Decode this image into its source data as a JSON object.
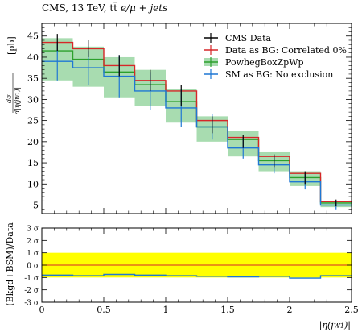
{
  "chart_data": {
    "type": "line",
    "title": "CMS, 13 TeV, t̄t e/μ + jets",
    "title_parts": {
      "pre": "CMS, 13 TeV, t",
      "tbar": "t",
      "post": " e/μ + jets"
    },
    "ylabel": "[pb]",
    "ylabel_num": "dσ",
    "ylabel_den": "d|η(j",
    "ylabel_den_tail": ")|",
    "xlabel": "|η(j",
    "xlabel_tail": ")|",
    "jet_sub": "W1",
    "ylim": [
      3,
      48
    ],
    "xlim": [
      0,
      2.5
    ],
    "x_edges": [
      0,
      0.25,
      0.5,
      0.75,
      1.0,
      1.25,
      1.5,
      1.75,
      2.0,
      2.25,
      2.5
    ],
    "x_centers": [
      0.125,
      0.375,
      0.625,
      0.875,
      1.125,
      1.375,
      1.625,
      1.875,
      2.125,
      2.375
    ],
    "y_ticks": [
      "5",
      "10",
      "15",
      "20",
      "25",
      "30",
      "35",
      "40",
      "45"
    ],
    "x_ticks": [
      "0",
      "0.5",
      "1",
      "1.5",
      "2",
      "2.5"
    ],
    "series": [
      {
        "name": "CMS Data",
        "color": "#000000",
        "values": [
          43.5,
          42,
          38,
          34.5,
          31,
          24,
          20,
          15.5,
          11.5,
          5.5
        ],
        "err": [
          2.0,
          2.0,
          2.5,
          2.5,
          2.5,
          2.0,
          1.5,
          1.5,
          1.5,
          0.8
        ]
      },
      {
        "name": "Data as BG: Correlated 0%",
        "color": "#d62728",
        "values": [
          43.5,
          42,
          38,
          34.5,
          32,
          25,
          21,
          16.5,
          12.5,
          5.8
        ]
      },
      {
        "name": "PowhegBoxZpWp",
        "color": "#2ca02c",
        "fill": "#a8dcb0",
        "values": [
          41.5,
          39.5,
          36.5,
          33.5,
          29.5,
          23.5,
          20.5,
          15.5,
          11.5,
          5.5
        ],
        "band_low": [
          34.5,
          33.0,
          30.5,
          28.5,
          24.5,
          20.0,
          16.5,
          13.0,
          9.5,
          4.5
        ],
        "band_high": [
          44.5,
          42.5,
          40.0,
          37.0,
          32.5,
          26.0,
          22.5,
          17.5,
          13.0,
          6.0
        ]
      },
      {
        "name": "SM as BG: No exclusion",
        "color": "#1f77d4",
        "values": [
          39,
          37.5,
          35.5,
          32,
          28,
          23.5,
          18.5,
          14.5,
          10.5,
          5.0
        ],
        "err": [
          4.5,
          4.0,
          5.0,
          4.5,
          4.5,
          3.0,
          2.5,
          2.0,
          1.8,
          1.0
        ]
      }
    ],
    "ratio": {
      "ylabel": "(Bkgd+BSM)/Data",
      "ylim": [
        -3,
        3
      ],
      "ticks": [
        "3 σ",
        "2 σ",
        "1 σ",
        "0 σ",
        "-1 σ",
        "-2 σ",
        "-3 σ"
      ],
      "tick_values": [
        3,
        2,
        1,
        0,
        -1,
        -2,
        -3
      ],
      "band": [
        -1,
        1
      ],
      "band_color": "#ffff00",
      "line_color": "#1f77d4",
      "values": [
        -0.8,
        -0.85,
        -0.75,
        -0.8,
        -0.85,
        -0.9,
        -0.95,
        -0.9,
        -1.05,
        -0.85
      ]
    }
  }
}
